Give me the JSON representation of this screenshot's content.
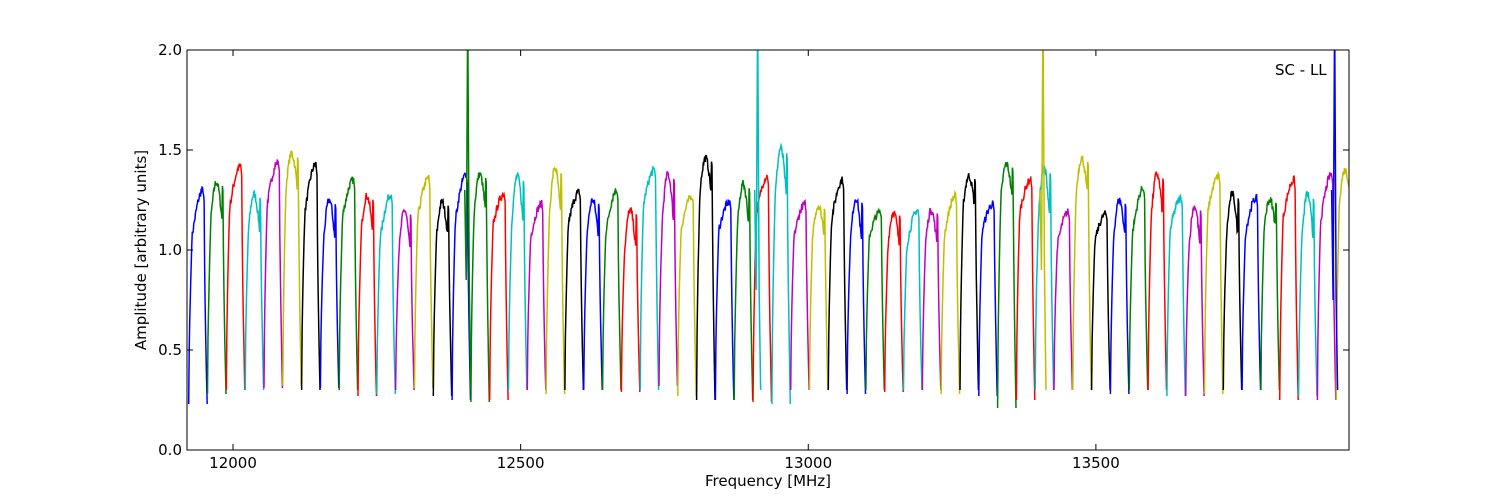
{
  "chart_data": {
    "type": "line",
    "annotation": "SC - LL",
    "xlabel": "Frequency [MHz]",
    "ylabel": "Amplitude [arbitrary units]",
    "xlim": [
      11920,
      13940
    ],
    "ylim": [
      0,
      2.0
    ],
    "xticks": [
      12000,
      12500,
      13000,
      13500
    ],
    "yticks": [
      0.0,
      0.5,
      1.0,
      1.5,
      2.0
    ],
    "ytick_labels": [
      "0.0",
      "0.5",
      "1.0",
      "1.5",
      "2.0"
    ],
    "grid": false,
    "legend": "none",
    "band_color_cycle": [
      "#0000ff",
      "#007f00",
      "#ff0000",
      "#00bfbf",
      "#bf00bf",
      "#bfbf00",
      "#000000"
    ],
    "band_step_mhz": 32.7,
    "band_start_mhz": 11923,
    "band_peaks": [
      1.3,
      1.34,
      1.42,
      1.28,
      1.44,
      1.48,
      1.43,
      1.25,
      1.35,
      1.27,
      1.28,
      1.2,
      1.36,
      1.24,
      1.38,
      1.38,
      1.28,
      1.37,
      1.23,
      1.41,
      1.29,
      1.25,
      1.3,
      1.2,
      1.4,
      1.38,
      1.27,
      1.46,
      1.24,
      1.33,
      1.37,
      1.51,
      1.23,
      1.22,
      1.35,
      1.26,
      1.19,
      1.19,
      1.2,
      1.2,
      1.27,
      1.37,
      1.23,
      1.43,
      1.35,
      1.41,
      1.19,
      1.46,
      1.18,
      1.25,
      1.31,
      1.38,
      1.26,
      1.22,
      1.37,
      1.28,
      1.26,
      1.25,
      1.35,
      1.28,
      1.38,
      1.4,
      1.38
    ],
    "band_troughs": [
      0.23,
      0.28,
      0.3,
      0.3,
      0.31,
      0.32,
      0.3,
      0.31,
      0.3,
      0.27,
      0.28,
      0.3,
      0.31,
      0.27,
      0.25,
      0.24,
      0.25,
      0.3,
      0.3,
      0.28,
      0.3,
      0.3,
      0.3,
      0.29,
      0.3,
      0.32,
      0.27,
      0.25,
      0.25,
      0.25,
      0.24,
      0.23,
      0.3,
      0.3,
      0.3,
      0.28,
      0.3,
      0.29,
      0.3,
      0.3,
      0.28,
      0.3,
      0.27,
      0.21,
      0.25,
      0.3,
      0.3,
      0.3,
      0.3,
      0.28,
      0.3,
      0.3,
      0.27,
      0.27,
      0.28,
      0.3,
      0.3,
      0.3,
      0.25,
      0.27,
      0.25,
      0.25,
      0.28
    ],
    "spikes": [
      {
        "x": 12408,
        "y_from": 0.85,
        "y_to": 2.0,
        "color": "#007f00"
      },
      {
        "x": 12912,
        "y_from": 0.8,
        "y_to": 2.0,
        "color": "#00bfbf"
      },
      {
        "x": 13408,
        "y_from": 0.9,
        "y_to": 2.0,
        "color": "#bfbf00"
      },
      {
        "x": 13915,
        "y_from": 0.75,
        "y_to": 2.0,
        "color": "#0000ff"
      }
    ]
  }
}
